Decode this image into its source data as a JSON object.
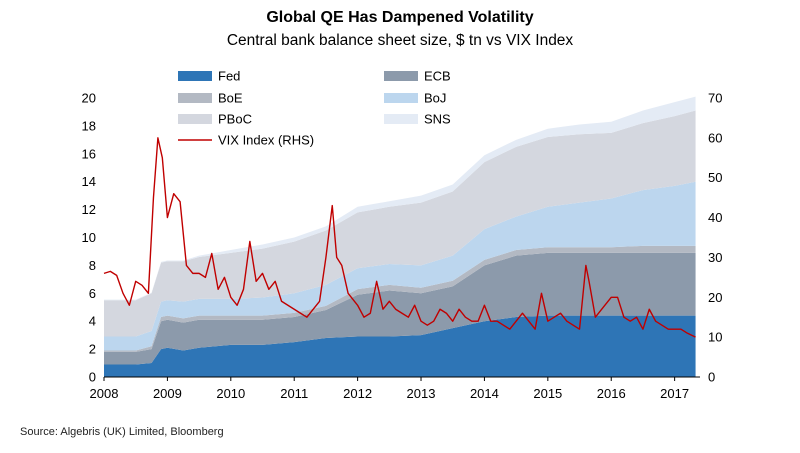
{
  "title": "Global QE Has Dampened Volatility",
  "subtitle": "Central bank balance sheet size, $ tn vs VIX Index",
  "source": "Source: Algebris (UK) Limited, Bloomberg",
  "chart_data": {
    "type": "area",
    "x_ticks": [
      "2008",
      "2009",
      "2010",
      "2011",
      "2012",
      "2013",
      "2014",
      "2015",
      "2016",
      "2017"
    ],
    "y_left": {
      "min": 0,
      "max": 20,
      "ticks": [
        "0",
        "2",
        "4",
        "6",
        "8",
        "10",
        "12",
        "14",
        "16",
        "18",
        "20"
      ]
    },
    "y_right": {
      "min": 0,
      "max": 70,
      "ticks": [
        "0",
        "10",
        "20",
        "30",
        "40",
        "50",
        "60",
        "70"
      ]
    },
    "x": [
      2008.0,
      2008.5,
      2008.75,
      2008.9,
      2009.0,
      2009.25,
      2009.5,
      2010.0,
      2010.5,
      2011.0,
      2011.5,
      2012.0,
      2012.5,
      2013.0,
      2013.5,
      2014.0,
      2014.5,
      2015.0,
      2015.5,
      2016.0,
      2016.5,
      2017.0,
      2017.33
    ],
    "stacked_series": [
      {
        "name": "Fed",
        "color": "#2e75b6",
        "values": [
          0.9,
          0.9,
          1.0,
          2.0,
          2.1,
          1.9,
          2.1,
          2.3,
          2.3,
          2.5,
          2.8,
          2.9,
          2.9,
          3.0,
          3.5,
          4.0,
          4.3,
          4.4,
          4.4,
          4.4,
          4.4,
          4.4,
          4.4
        ]
      },
      {
        "name": "ECB",
        "color": "#8c9aab",
        "values": [
          0.9,
          0.9,
          1.0,
          2.0,
          2.0,
          2.0,
          2.0,
          1.8,
          1.8,
          1.8,
          2.0,
          3.0,
          3.3,
          3.0,
          3.0,
          4.0,
          4.4,
          4.5,
          4.5,
          4.5,
          4.5,
          4.5,
          4.5
        ]
      },
      {
        "name": "BoE",
        "color": "#b3b9c3",
        "values": [
          0.1,
          0.1,
          0.2,
          0.3,
          0.3,
          0.3,
          0.3,
          0.3,
          0.3,
          0.3,
          0.3,
          0.4,
          0.4,
          0.4,
          0.4,
          0.4,
          0.4,
          0.4,
          0.4,
          0.4,
          0.5,
          0.5,
          0.5
        ]
      },
      {
        "name": "BoJ",
        "color": "#bcd6ee",
        "values": [
          1.0,
          1.0,
          1.1,
          1.1,
          1.1,
          1.2,
          1.2,
          1.2,
          1.3,
          1.4,
          1.5,
          1.5,
          1.5,
          1.6,
          1.8,
          2.2,
          2.4,
          2.9,
          3.2,
          3.5,
          4.0,
          4.3,
          4.6
        ]
      },
      {
        "name": "PBoC",
        "color": "#d4d7df",
        "values": [
          2.6,
          2.6,
          2.7,
          2.8,
          2.8,
          2.9,
          3.0,
          3.3,
          3.5,
          3.7,
          3.9,
          4.0,
          4.1,
          4.5,
          4.6,
          4.8,
          5.0,
          5.0,
          4.9,
          4.7,
          4.8,
          5.0,
          5.1
        ]
      },
      {
        "name": "SNS",
        "color": "#e4ebf5",
        "values": [
          0.05,
          0.05,
          0.05,
          0.05,
          0.05,
          0.05,
          0.1,
          0.2,
          0.3,
          0.3,
          0.3,
          0.4,
          0.4,
          0.5,
          0.5,
          0.5,
          0.5,
          0.6,
          0.7,
          0.8,
          0.9,
          1.0,
          1.0
        ]
      }
    ],
    "line_series": {
      "name": "VIX Index (RHS)",
      "color": "#c00000",
      "axis": "right",
      "x": [
        2008.0,
        2008.1,
        2008.2,
        2008.3,
        2008.4,
        2008.5,
        2008.6,
        2008.7,
        2008.78,
        2008.85,
        2008.92,
        2009.0,
        2009.1,
        2009.2,
        2009.3,
        2009.4,
        2009.5,
        2009.6,
        2009.7,
        2009.8,
        2009.9,
        2010.0,
        2010.1,
        2010.2,
        2010.3,
        2010.4,
        2010.5,
        2010.6,
        2010.7,
        2010.8,
        2010.9,
        2011.0,
        2011.1,
        2011.2,
        2011.3,
        2011.4,
        2011.5,
        2011.6,
        2011.67,
        2011.75,
        2011.85,
        2012.0,
        2012.1,
        2012.2,
        2012.3,
        2012.4,
        2012.5,
        2012.6,
        2012.7,
        2012.8,
        2012.9,
        2013.0,
        2013.1,
        2013.2,
        2013.3,
        2013.4,
        2013.5,
        2013.6,
        2013.7,
        2013.8,
        2013.9,
        2014.0,
        2014.1,
        2014.2,
        2014.3,
        2014.4,
        2014.5,
        2014.6,
        2014.7,
        2014.8,
        2014.9,
        2015.0,
        2015.1,
        2015.2,
        2015.3,
        2015.4,
        2015.5,
        2015.6,
        2015.65,
        2015.75,
        2015.85,
        2016.0,
        2016.1,
        2016.2,
        2016.3,
        2016.4,
        2016.5,
        2016.6,
        2016.7,
        2016.8,
        2016.9,
        2017.0,
        2017.1,
        2017.2,
        2017.33
      ],
      "values": [
        26,
        26.5,
        25.5,
        21,
        18,
        24,
        23,
        21,
        45,
        60,
        55,
        40,
        46,
        44,
        28,
        26,
        26,
        25,
        31,
        22,
        25,
        20,
        18,
        22,
        34,
        24,
        26,
        22,
        24,
        19,
        18,
        17,
        16,
        15,
        17,
        19,
        30,
        43,
        30,
        28,
        21,
        18,
        15,
        16,
        24,
        17,
        19,
        17,
        16,
        15,
        18,
        14,
        13,
        14,
        17,
        16,
        14,
        17,
        15,
        14,
        14,
        18,
        14,
        14,
        13,
        12,
        14,
        16,
        14,
        12,
        21,
        14,
        15,
        16,
        14,
        13,
        12,
        28,
        24,
        15,
        17,
        20,
        20,
        15,
        14,
        15,
        12,
        17,
        14,
        13,
        12,
        12,
        12,
        11,
        10
      ]
    },
    "legend": [
      {
        "name": "Fed",
        "color": "#2e75b6",
        "kind": "box"
      },
      {
        "name": "ECB",
        "color": "#8c9aab",
        "kind": "box"
      },
      {
        "name": "BoE",
        "color": "#b3b9c3",
        "kind": "box"
      },
      {
        "name": "BoJ",
        "color": "#bcd6ee",
        "kind": "box"
      },
      {
        "name": "PBoC",
        "color": "#d4d7df",
        "kind": "box"
      },
      {
        "name": "SNS",
        "color": "#e4ebf5",
        "kind": "box"
      },
      {
        "name": "VIX Index (RHS)",
        "color": "#c00000",
        "kind": "line"
      }
    ],
    "legend_placement": "top-left",
    "grid": false
  }
}
